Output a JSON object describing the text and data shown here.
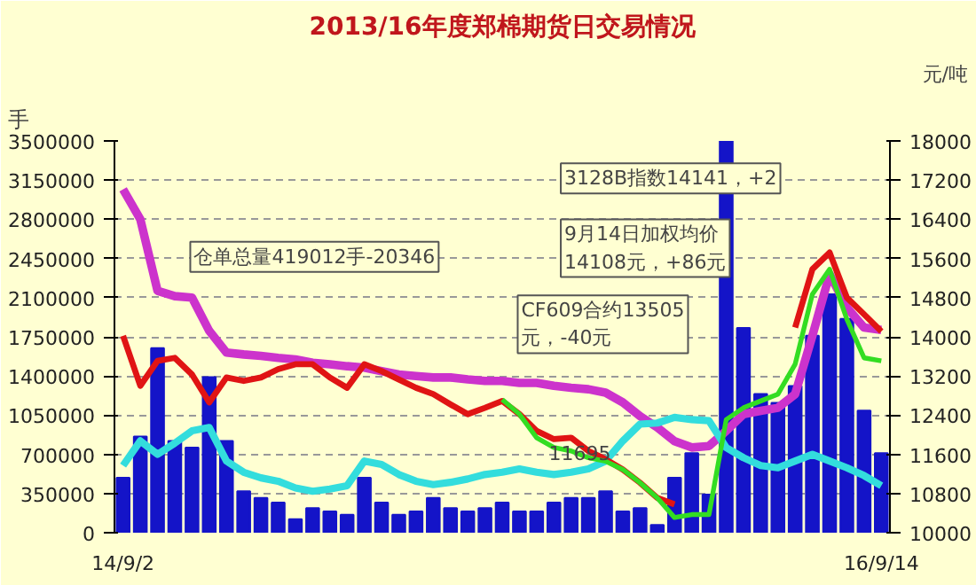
{
  "chart_data": {
    "type": "bar",
    "title": "2013/16年度郑棉期货日交易情况",
    "ylabel": "手",
    "y2label": "元/吨",
    "categories": [
      "14/9/2",
      null,
      null,
      null,
      null,
      null,
      null,
      null,
      null,
      null,
      null,
      null,
      null,
      null,
      null,
      null,
      null,
      null,
      null,
      null,
      null,
      null,
      null,
      null,
      null,
      null,
      null,
      null,
      null,
      null,
      null,
      null,
      null,
      null,
      null,
      null,
      null,
      null,
      null,
      null,
      null,
      null,
      null,
      null,
      "16/9/14"
    ],
    "ylim": [
      0,
      3500000
    ],
    "yticks": [
      0,
      350000,
      700000,
      1050000,
      1400000,
      1750000,
      2100000,
      2450000,
      2800000,
      3150000,
      3500000
    ],
    "y2lim": [
      10000,
      18000
    ],
    "y2ticks": [
      10000,
      10800,
      11600,
      12400,
      13200,
      14000,
      14800,
      15600,
      16400,
      17200,
      18000
    ],
    "grid": "y",
    "series": [
      {
        "color": "#1414c8",
        "values": [
          490000,
          860000,
          1650000,
          820000,
          760000,
          1390000,
          820000,
          370000,
          310000,
          270000,
          120000,
          220000,
          190000,
          160000,
          490000,
          270000,
          160000,
          190000,
          310000,
          220000,
          190000,
          220000,
          270000,
          190000,
          190000,
          270000,
          310000,
          310000,
          370000,
          190000,
          220000,
          70000,
          490000,
          710000,
          340000,
          3500000,
          1830000,
          1240000,
          1160000,
          1310000,
          1760000,
          2130000,
          1910000,
          1090000,
          710000
        ]
      },
      {
        "type": "line",
        "axis": "y2",
        "color": "#cc33cc",
        "values": [
          17010,
          16400,
          14940,
          14830,
          14800,
          14120,
          13680,
          13640,
          13610,
          13570,
          13540,
          13470,
          13440,
          13400,
          13370,
          13300,
          13230,
          13200,
          13170,
          13170,
          13130,
          13100,
          13100,
          13060,
          13060,
          13000,
          12960,
          12930,
          12860,
          12660,
          12380,
          12150,
          11870,
          11740,
          11770,
          12080,
          12420,
          12490,
          12550,
          12830,
          14020,
          15280,
          14600,
          14190,
          14140
        ]
      },
      {
        "type": "line",
        "color": "#33dddd",
        "values": [
          600000,
          820000,
          700000,
          800000,
          910000,
          940000,
          640000,
          540000,
          490000,
          460000,
          400000,
          370000,
          390000,
          420000,
          640000,
          610000,
          520000,
          460000,
          430000,
          450000,
          480000,
          520000,
          540000,
          570000,
          540000,
          520000,
          540000,
          570000,
          640000,
          820000,
          970000,
          980000,
          1030000,
          1010000,
          1000000,
          760000,
          670000,
          600000,
          580000,
          640000,
          700000,
          640000,
          580000,
          510000,
          420000
        ]
      },
      {
        "type": "line",
        "axis": "y2",
        "color": "#e01414",
        "values": [
          14020,
          13000,
          13510,
          13570,
          13230,
          12660,
          13170,
          13100,
          13170,
          13340,
          13440,
          13440,
          13170,
          12960,
          13440,
          13300,
          13130,
          12960,
          12830,
          12620,
          12420,
          12550,
          12690,
          12420,
          12080,
          11910,
          11940,
          11670,
          11500,
          11290,
          11020,
          10710,
          10580,
          null,
          null,
          null,
          null,
          null,
          null,
          14190,
          15380,
          15720,
          14800,
          14460,
          14110
        ]
      },
      {
        "type": "line",
        "axis": "y2",
        "color": "#33dd22",
        "values": [
          null,
          null,
          null,
          null,
          null,
          null,
          null,
          null,
          null,
          null,
          null,
          null,
          null,
          null,
          null,
          null,
          null,
          null,
          null,
          null,
          null,
          null,
          12720,
          12420,
          11940,
          11740,
          11670,
          11530,
          11460,
          11290,
          11020,
          10710,
          10310,
          10370,
          10370,
          12310,
          12550,
          12690,
          12830,
          13440,
          14870,
          15380,
          14360,
          13570,
          13510
        ]
      }
    ],
    "annotations": [
      "仓单总量419012手-20346",
      "3128B指数14141，+2",
      "9月14日加权均价\n14108元，+86元",
      "CF609合约13505\n元，-40元",
      "11695"
    ]
  }
}
